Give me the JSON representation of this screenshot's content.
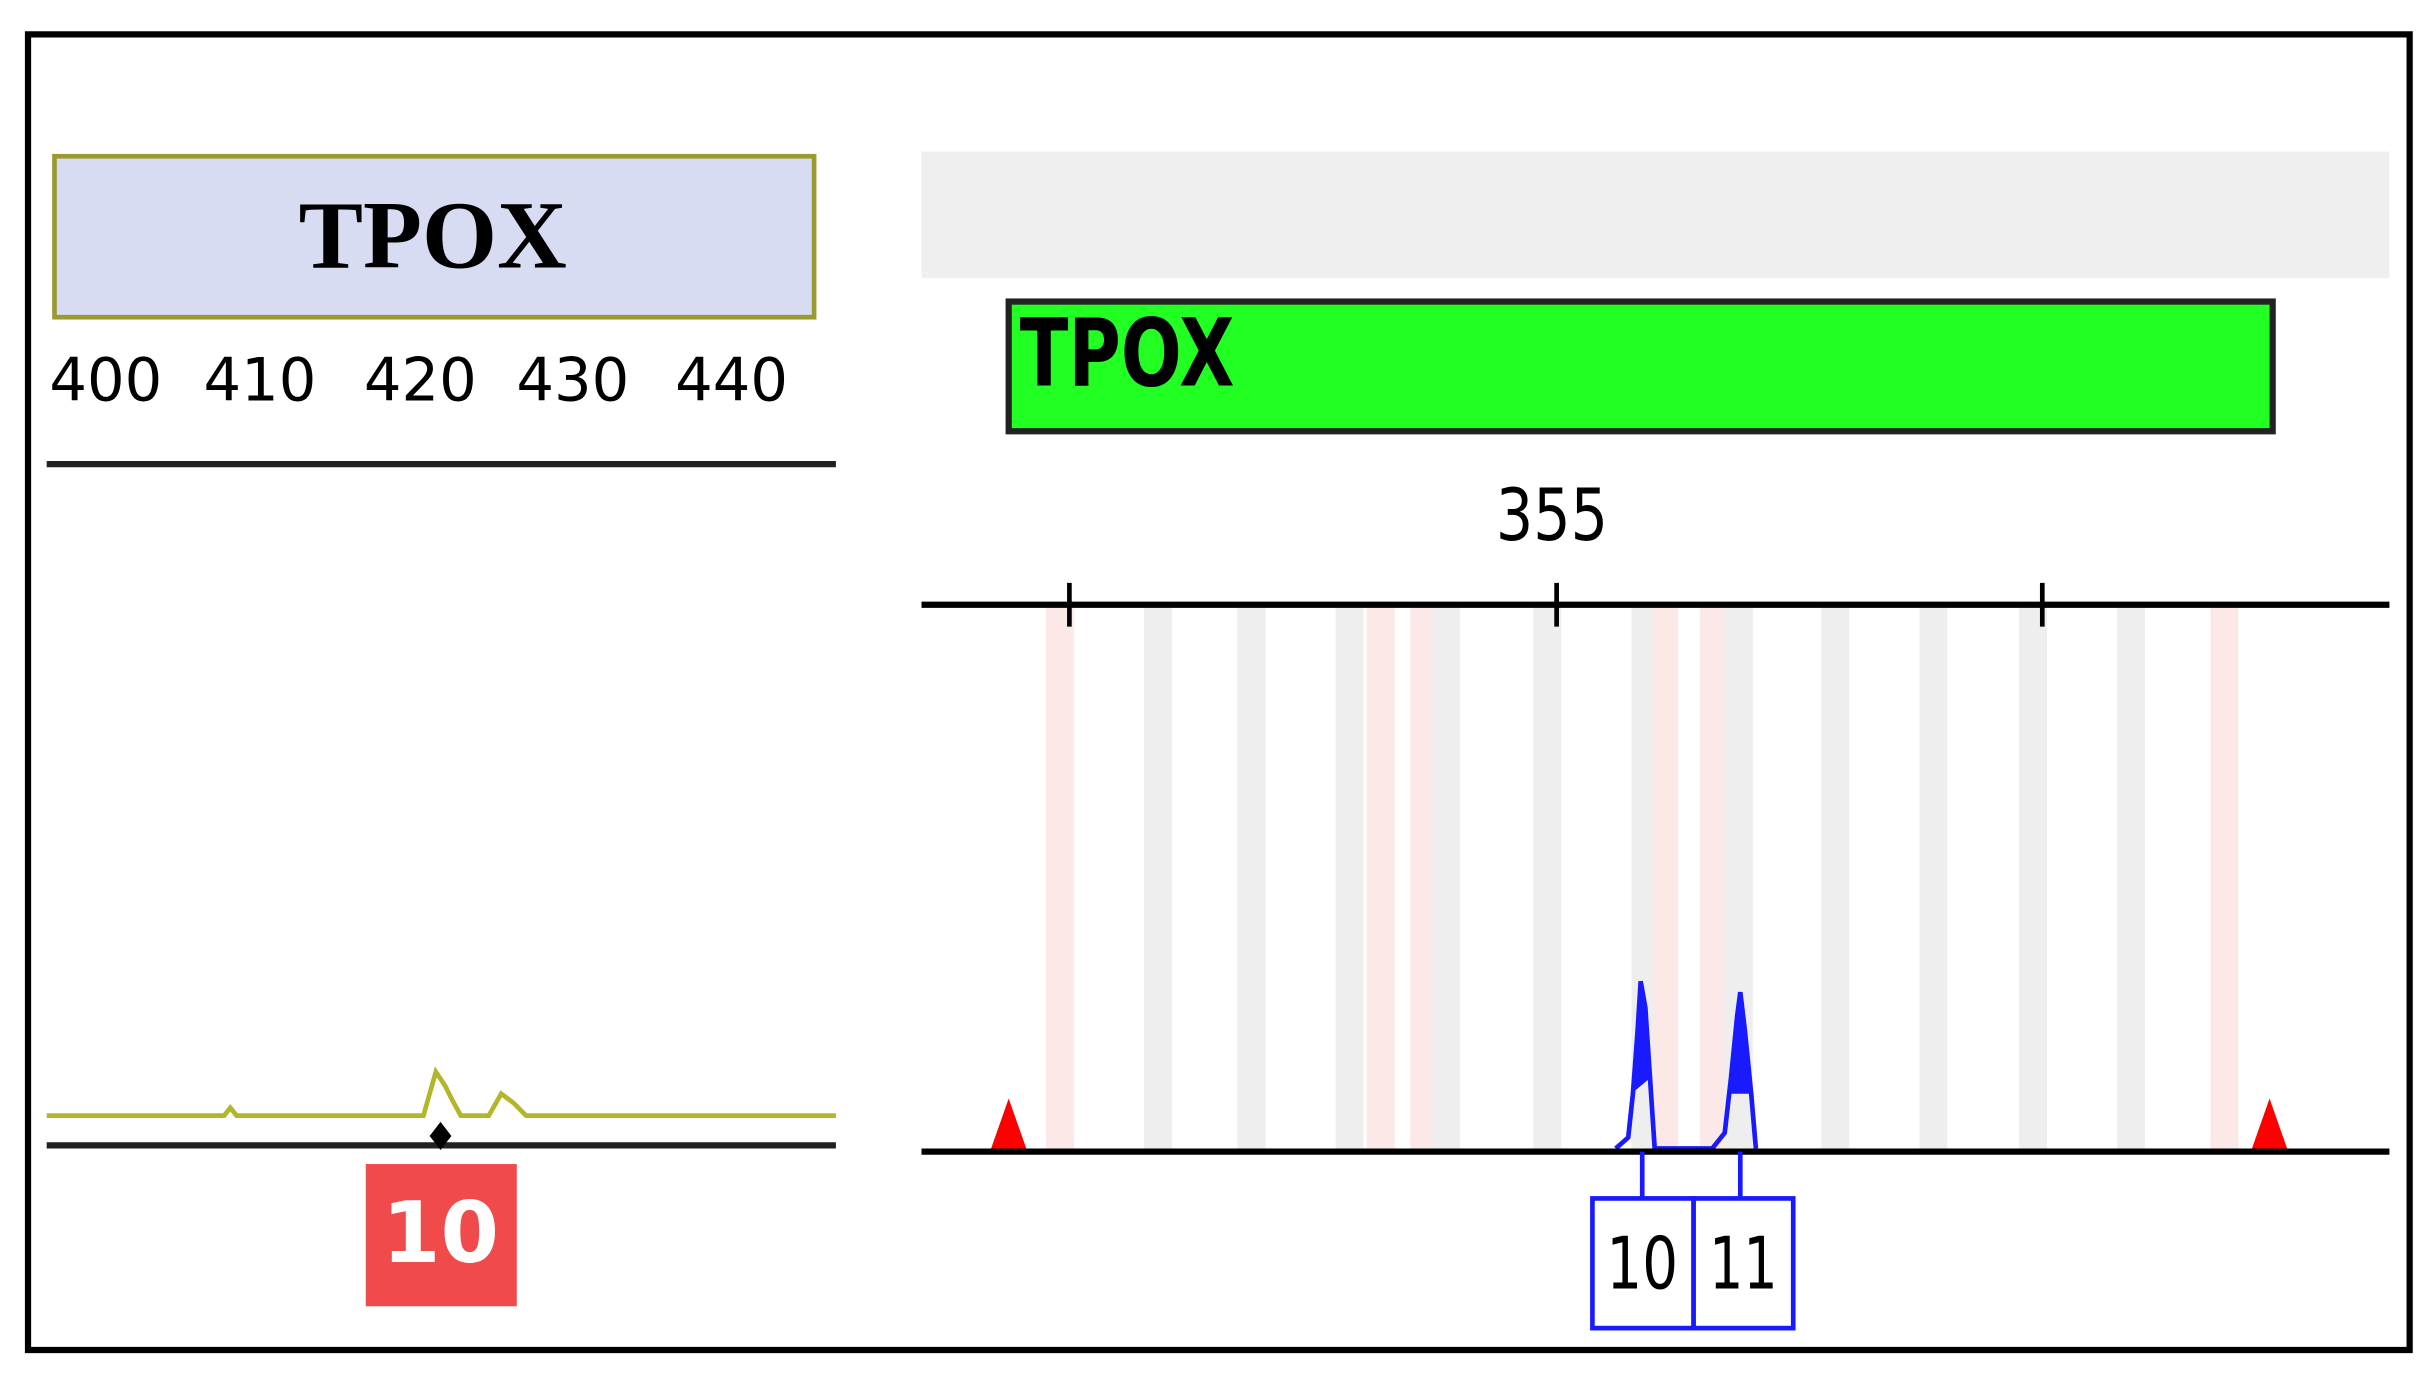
{
  "left_panel": {
    "marker": "TPOX",
    "scale_labels": [
      "400",
      "410",
      "420",
      "430",
      "440"
    ],
    "allele_call": "10"
  },
  "right_panel": {
    "marker": "TPOX",
    "scale_label": "355",
    "allele_calls": [
      "10",
      "11"
    ]
  }
}
